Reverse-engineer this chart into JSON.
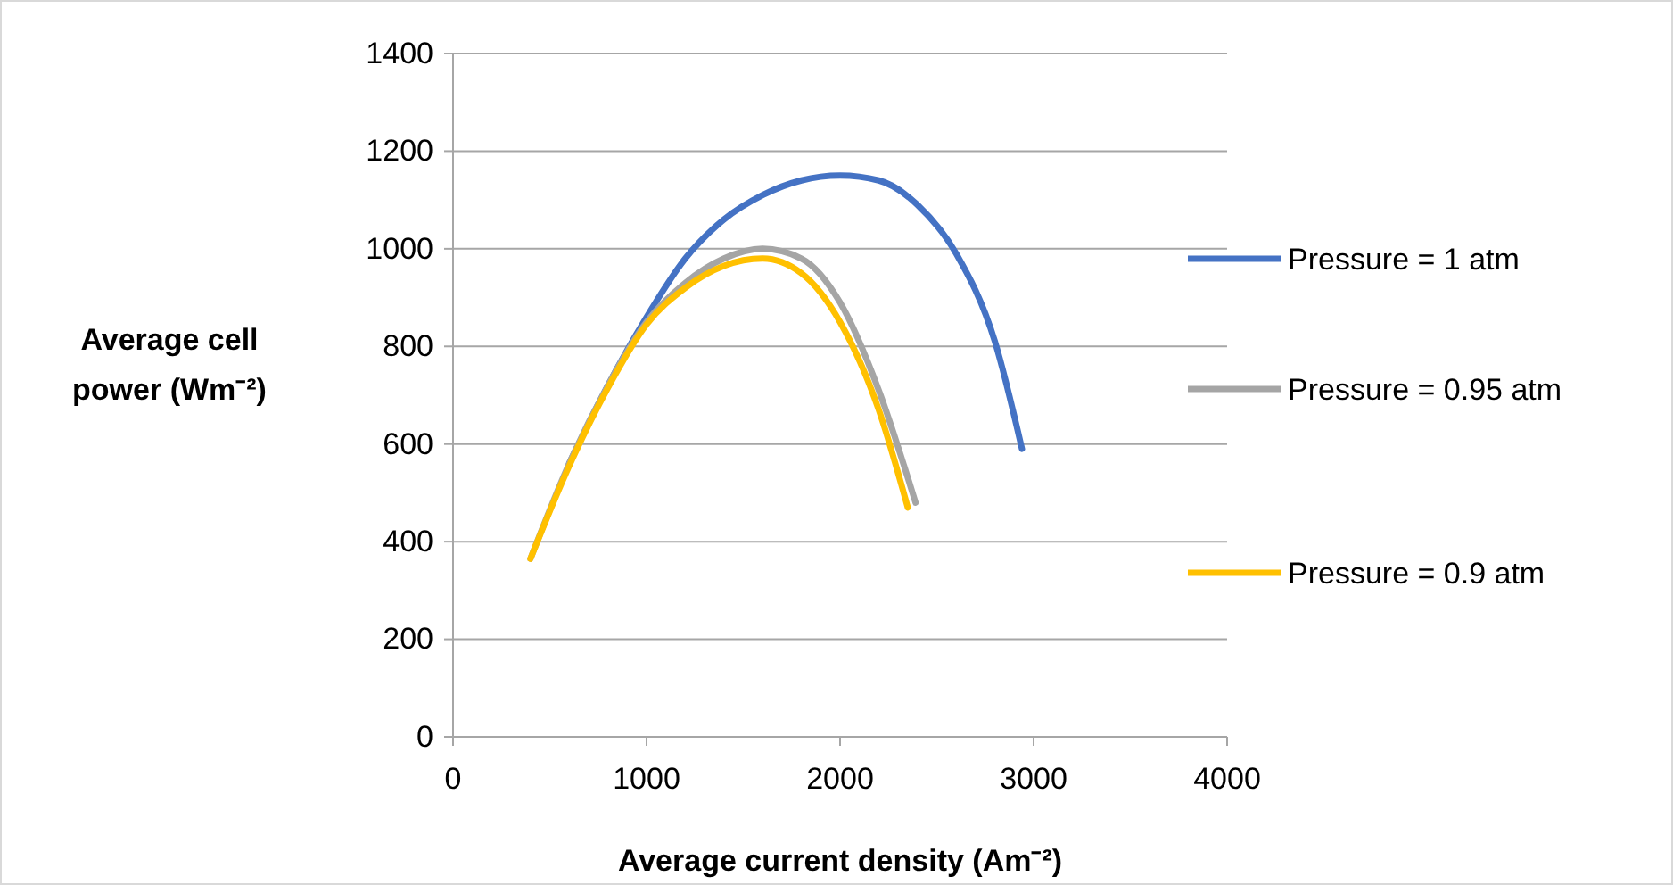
{
  "chart_data": {
    "type": "line",
    "xlabel": "Average current density (Am⁻²)",
    "ylabel": "Average cell power (Wm⁻²)",
    "xlim": [
      0,
      4000
    ],
    "xticks": [
      0,
      1000,
      2000,
      3000,
      4000
    ],
    "ylim": [
      0,
      1400
    ],
    "yticks": [
      0,
      200,
      400,
      600,
      800,
      1000,
      1200,
      1400
    ],
    "grid": "y",
    "legend": "right",
    "marker": "none",
    "line_style": "solid",
    "series": [
      {
        "name": "Pressure = 1 atm",
        "color": "#4472c4",
        "x": [
          600,
          800,
          1000,
          1200,
          1400,
          1600,
          1800,
          2000,
          2200,
          2400,
          2600,
          2800,
          2940
        ],
        "values": [
          560,
          720,
          860,
          980,
          1060,
          1110,
          1140,
          1150,
          1140,
          1090,
          990,
          810,
          590
        ]
      },
      {
        "name": "Pressure = 0.95 atm",
        "color": "#a5a5a5",
        "x": [
          400,
          600,
          800,
          1000,
          1200,
          1400,
          1600,
          1800,
          2000,
          2200,
          2390
        ],
        "values": [
          365,
          560,
          720,
          850,
          930,
          980,
          1000,
          980,
          890,
          710,
          480
        ]
      },
      {
        "name": "Pressure = 0.9 atm",
        "color": "#ffc000",
        "x": [
          400,
          600,
          800,
          1000,
          1200,
          1400,
          1600,
          1800,
          2000,
          2200,
          2350
        ],
        "values": [
          365,
          555,
          715,
          845,
          920,
          965,
          980,
          950,
          850,
          670,
          470
        ]
      }
    ]
  }
}
